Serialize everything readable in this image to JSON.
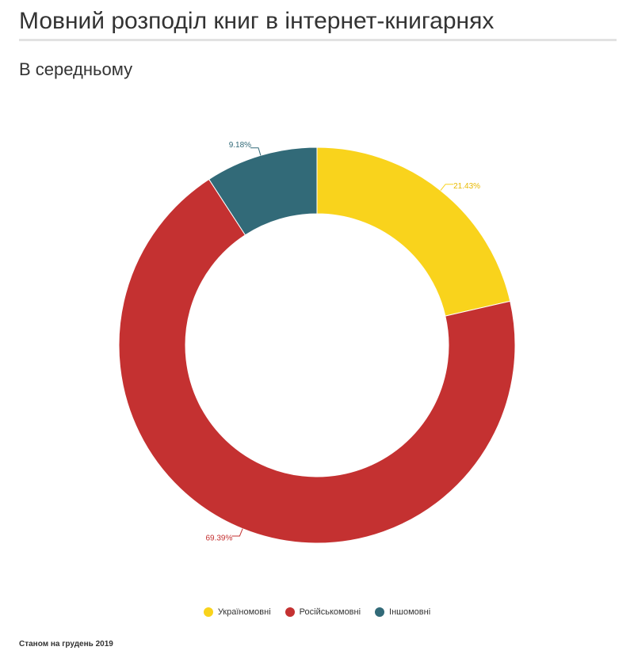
{
  "header": {
    "title": "Мовний розподіл книг в інтернет-книгарнях",
    "subtitle": "В середньому"
  },
  "chart_data": {
    "type": "pie",
    "donut": true,
    "categories": [
      "Україномовні",
      "Російськомовні",
      "Іншомовні"
    ],
    "values": [
      21.43,
      69.39,
      9.18
    ],
    "labels": [
      "21.43%",
      "69.39%",
      "9.18%"
    ],
    "colors": [
      "#f9d31c",
      "#c43131",
      "#326a78"
    ],
    "legend_position": "bottom"
  },
  "footnote": "Станом на грудень 2019"
}
